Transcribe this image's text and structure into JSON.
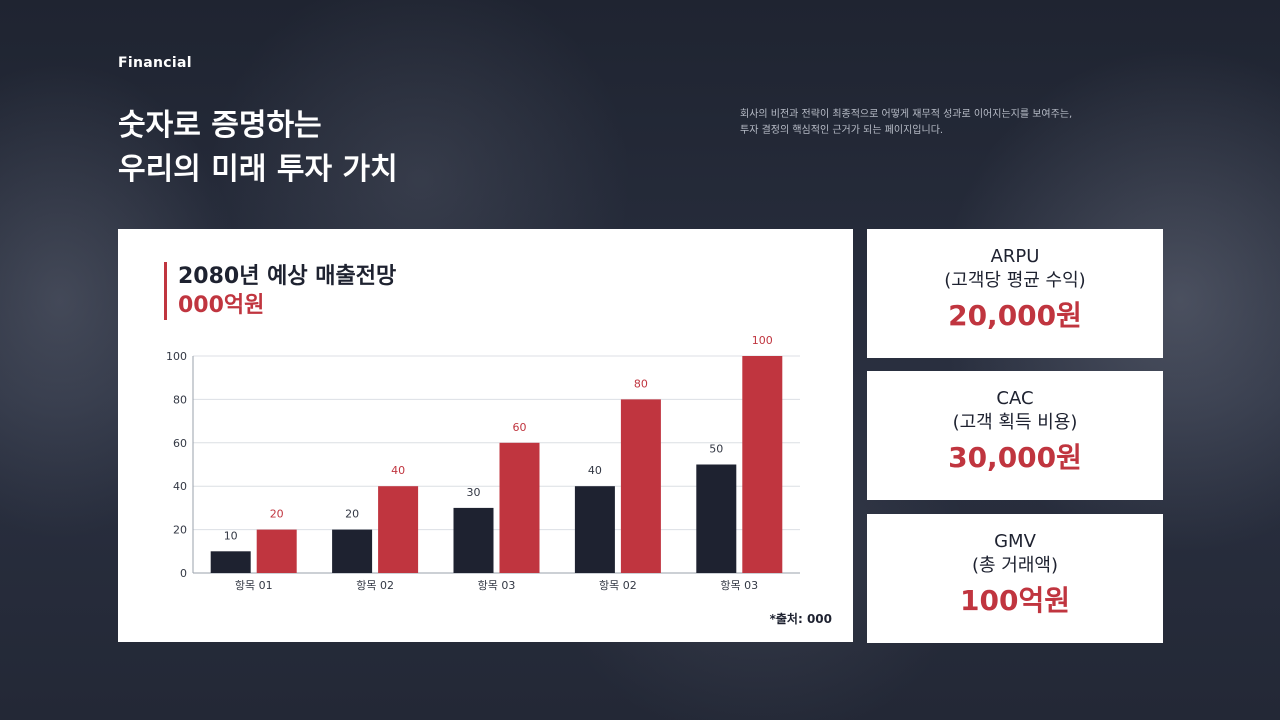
{
  "header": {
    "eyebrow": "Financial",
    "title_line1": "숫자로 증명하는",
    "title_line2": "우리의 미래 투자 가치",
    "intro_line1": "회사의 비전과 전략이 최종적으로 어떻게 재무적 성과로 이어지는지를 보여주는,",
    "intro_line2": "투자 결정의 핵심적인 근거가 되는 페이지입니다."
  },
  "chart_card": {
    "title": "2080년 예상 매출전망",
    "subtitle": "000억원",
    "source": "*출처: 000"
  },
  "chart_data": {
    "type": "bar",
    "categories": [
      "항목 01",
      "항목 02",
      "항목 03",
      "항목 02",
      "항목 03"
    ],
    "series": [
      {
        "values": [
          10,
          20,
          30,
          40,
          50
        ],
        "color": "#1e2230"
      },
      {
        "values": [
          20,
          40,
          60,
          80,
          100
        ],
        "color": "#c0353f"
      }
    ],
    "y_ticks": [
      0,
      20,
      40,
      60,
      80,
      100
    ],
    "ylim": [
      0,
      100
    ],
    "grid": true,
    "data_labels": true
  },
  "kpis": [
    {
      "name": "ARPU",
      "desc": "(고객당 평균 수익)",
      "value": "20,000원"
    },
    {
      "name": "CAC",
      "desc": "(고객 획득 비용)",
      "value": "30,000원"
    },
    {
      "name": "GMV",
      "desc": "(총 거래액)",
      "value": "100억원"
    }
  ],
  "colors": {
    "accent": "#c0353f",
    "dark": "#1e2230"
  }
}
